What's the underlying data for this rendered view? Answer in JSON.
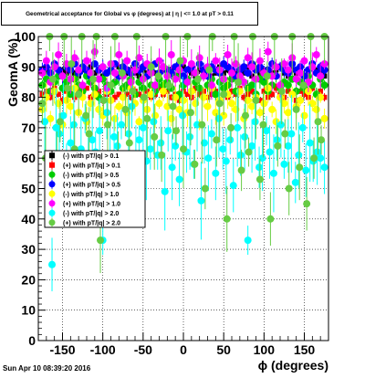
{
  "title": "Geometrical acceptance for Global vs φ (degrees) at | η | <= 1.0 at pT > 0.11",
  "footer": "Sun Apr 10 08:39:20 2016",
  "chart_data": {
    "type": "scatter",
    "xlabel": "ϕ (degrees)",
    "ylabel": "GeomA (%)",
    "xlim": [
      -180,
      180
    ],
    "ylim": [
      0,
      100
    ],
    "x_ticks": [
      -150,
      -100,
      -50,
      0,
      50,
      100,
      150
    ],
    "x_tick_labels": [
      "-150",
      "-100",
      "-50",
      "0",
      "50",
      "100",
      "150"
    ],
    "y_ticks": [
      0,
      10,
      20,
      30,
      40,
      50,
      60,
      70,
      80,
      90,
      100
    ],
    "y_tick_labels": [
      "0",
      "10",
      "20",
      "30",
      "40",
      "50",
      "60",
      "70",
      "80",
      "90",
      "100"
    ],
    "grid": true,
    "legend_position": "middle-left",
    "series": [
      {
        "name": "(-) with pT/|q| > 0.1",
        "color": "#000000",
        "marker": "square",
        "band": [
          87,
          90
        ],
        "err": 1,
        "x": [
          -175,
          -170,
          -165,
          -160,
          -155,
          -150,
          -145,
          -140,
          -135,
          -130,
          -125,
          -120,
          -115,
          -110,
          -105,
          -100,
          -95,
          -90,
          -85,
          -80,
          -75,
          -70,
          -65,
          -60,
          -55,
          -50,
          -45,
          -40,
          -35,
          -30,
          -25,
          -20,
          -15,
          -10,
          -5,
          0,
          5,
          10,
          15,
          20,
          25,
          30,
          35,
          40,
          45,
          50,
          55,
          60,
          65,
          70,
          75,
          80,
          85,
          90,
          95,
          100,
          105,
          110,
          115,
          120,
          125,
          130,
          135,
          140,
          145,
          150,
          155,
          160,
          165,
          170,
          175
        ],
        "y": [
          88,
          89,
          88,
          90,
          87,
          89,
          88,
          89,
          88,
          87,
          89,
          88,
          90,
          88,
          89,
          87,
          88,
          89,
          88,
          90,
          87,
          88,
          89,
          88,
          87,
          89,
          88,
          90,
          88,
          87,
          89,
          88,
          89,
          87,
          88,
          90,
          89,
          88,
          87,
          89,
          88,
          89,
          87,
          88,
          90,
          88,
          89,
          87,
          88,
          89,
          88,
          90,
          87,
          89,
          88,
          89,
          87,
          88,
          89,
          90,
          88,
          87,
          89,
          88,
          89,
          87,
          88,
          90,
          89,
          88,
          87
        ]
      },
      {
        "name": "(+) with pT/|q| > 0.1",
        "color": "#ff0000",
        "marker": "square",
        "band": [
          79,
          83
        ],
        "err": 1,
        "x": [
          -175,
          -170,
          -165,
          -160,
          -155,
          -150,
          -145,
          -140,
          -135,
          -130,
          -125,
          -120,
          -115,
          -110,
          -105,
          -100,
          -95,
          -90,
          -85,
          -80,
          -75,
          -70,
          -65,
          -60,
          -55,
          -50,
          -45,
          -40,
          -35,
          -30,
          -25,
          -20,
          -15,
          -10,
          -5,
          0,
          5,
          10,
          15,
          20,
          25,
          30,
          35,
          40,
          45,
          50,
          55,
          60,
          65,
          70,
          75,
          80,
          85,
          90,
          95,
          100,
          105,
          110,
          115,
          120,
          125,
          130,
          135,
          140,
          145,
          150,
          155,
          160,
          165,
          170,
          175
        ],
        "y": [
          81,
          82,
          80,
          83,
          81,
          79,
          82,
          81,
          80,
          82,
          81,
          83,
          80,
          81,
          82,
          79,
          81,
          82,
          80,
          81,
          83,
          81,
          80,
          82,
          81,
          79,
          82,
          80,
          81,
          83,
          81,
          82,
          80,
          81,
          79,
          82,
          81,
          80,
          83,
          81,
          82,
          80,
          81,
          82,
          79,
          81,
          80,
          82,
          81,
          83,
          80,
          81,
          82,
          81,
          79,
          82,
          80,
          81,
          83,
          81,
          80,
          82,
          81,
          79,
          82,
          81,
          80,
          83,
          81,
          82,
          80
        ]
      },
      {
        "name": "(-) with pT/|q| > 0.5",
        "color": "#00cc00",
        "marker": "circle",
        "band": [
          80,
          88
        ],
        "err": 2,
        "x": [
          -175,
          -170,
          -165,
          -160,
          -155,
          -150,
          -145,
          -140,
          -135,
          -130,
          -125,
          -120,
          -115,
          -110,
          -105,
          -100,
          -95,
          -90,
          -85,
          -80,
          -75,
          -70,
          -65,
          -60,
          -55,
          -50,
          -45,
          -40,
          -35,
          -30,
          -25,
          -20,
          -15,
          -10,
          -5,
          0,
          5,
          10,
          15,
          20,
          25,
          30,
          35,
          40,
          45,
          50,
          55,
          60,
          65,
          70,
          75,
          80,
          85,
          90,
          95,
          100,
          105,
          110,
          115,
          120,
          125,
          130,
          135,
          140,
          145,
          150,
          155,
          160,
          165,
          170,
          175
        ],
        "y": [
          84,
          86,
          82,
          85,
          87,
          83,
          85,
          81,
          86,
          84,
          82,
          87,
          85,
          83,
          80,
          86,
          84,
          82,
          85,
          87,
          83,
          84,
          86,
          81,
          85,
          83,
          87,
          84,
          82,
          86,
          84,
          85,
          83,
          87,
          81,
          84,
          86,
          82,
          85,
          83,
          87,
          84,
          86,
          81,
          85,
          83,
          84,
          86,
          82,
          87,
          85,
          83,
          84,
          81,
          86,
          85,
          82,
          84,
          87,
          83,
          85,
          84,
          86,
          82,
          85,
          83,
          87,
          84,
          81,
          86,
          84
        ]
      },
      {
        "name": "(+) with pT/|q| > 0.5",
        "color": "#0000ff",
        "marker": "circle",
        "band": [
          86,
          91
        ],
        "err": 1.5,
        "x": [
          -175,
          -170,
          -165,
          -160,
          -155,
          -150,
          -145,
          -140,
          -135,
          -130,
          -125,
          -120,
          -115,
          -110,
          -105,
          -100,
          -95,
          -90,
          -85,
          -80,
          -75,
          -70,
          -65,
          -60,
          -55,
          -50,
          -45,
          -40,
          -35,
          -30,
          -25,
          -20,
          -15,
          -10,
          -5,
          0,
          5,
          10,
          15,
          20,
          25,
          30,
          35,
          40,
          45,
          50,
          55,
          60,
          65,
          70,
          75,
          80,
          85,
          90,
          95,
          100,
          105,
          110,
          115,
          120,
          125,
          130,
          135,
          140,
          145,
          150,
          155,
          160,
          165,
          170,
          175
        ],
        "y": [
          89,
          90,
          88,
          91,
          89,
          87,
          90,
          89,
          91,
          88,
          90,
          89,
          87,
          91,
          89,
          90,
          88,
          89,
          91,
          87,
          90,
          89,
          88,
          91,
          89,
          90,
          87,
          89,
          91,
          88,
          90,
          89,
          88,
          90,
          91,
          87,
          89,
          90,
          88,
          91,
          89,
          87,
          90,
          89,
          88,
          91,
          90,
          89,
          87,
          89,
          90,
          88,
          91,
          89,
          90,
          88,
          89,
          91,
          87,
          90,
          89,
          88,
          91,
          89,
          90,
          87,
          89,
          91,
          88,
          90,
          89
        ]
      },
      {
        "name": "(-) with pT/|q| > 1.0",
        "color": "#ffff00",
        "marker": "circle",
        "band": [
          70,
          85
        ],
        "err": 3,
        "x": [
          -175,
          -170,
          -165,
          -160,
          -155,
          -150,
          -145,
          -140,
          -135,
          -130,
          -125,
          -120,
          -115,
          -110,
          -105,
          -100,
          -95,
          -90,
          -85,
          -80,
          -75,
          -70,
          -65,
          -60,
          -55,
          -50,
          -45,
          -40,
          -35,
          -30,
          -25,
          -20,
          -15,
          -10,
          -5,
          0,
          5,
          10,
          15,
          20,
          25,
          30,
          35,
          40,
          45,
          50,
          55,
          60,
          65,
          70,
          75,
          80,
          85,
          90,
          95,
          100,
          105,
          110,
          115,
          120,
          125,
          130,
          135,
          140,
          145,
          150,
          155,
          160,
          165,
          170,
          175
        ],
        "y": [
          76,
          80,
          73,
          82,
          78,
          71,
          79,
          77,
          83,
          75,
          80,
          72,
          78,
          81,
          76,
          74,
          82,
          79,
          73,
          77,
          80,
          75,
          83,
          78,
          72,
          79,
          76,
          81,
          74,
          78,
          82,
          77,
          73,
          80,
          76,
          79,
          75,
          82,
          78,
          71,
          80,
          77,
          83,
          75,
          79,
          74,
          81,
          78,
          76,
          82,
          73,
          79,
          77,
          80,
          75,
          78,
          83,
          76,
          72,
          80,
          78,
          75,
          81,
          77,
          79,
          74,
          82,
          78,
          76,
          80,
          73
        ]
      },
      {
        "name": "(+) with pT/|q| > 1.0",
        "color": "#ff00ff",
        "marker": "circle",
        "band": [
          82,
          95
        ],
        "err": 3,
        "x": [
          -175,
          -170,
          -165,
          -160,
          -155,
          -150,
          -145,
          -140,
          -135,
          -130,
          -125,
          -120,
          -115,
          -110,
          -105,
          -100,
          -95,
          -90,
          -85,
          -80,
          -75,
          -70,
          -65,
          -60,
          -55,
          -50,
          -45,
          -40,
          -35,
          -30,
          -25,
          -20,
          -15,
          -10,
          -5,
          0,
          5,
          10,
          15,
          20,
          25,
          30,
          35,
          40,
          45,
          50,
          55,
          60,
          65,
          70,
          75,
          80,
          85,
          90,
          95,
          100,
          105,
          110,
          115,
          120,
          125,
          130,
          135,
          140,
          145,
          150,
          155,
          160,
          165,
          170,
          175
        ],
        "y": [
          88,
          92,
          85,
          90,
          94,
          87,
          91,
          86,
          93,
          89,
          84,
          92,
          88,
          95,
          86,
          90,
          83,
          91,
          88,
          94,
          87,
          92,
          85,
          89,
          93,
          86,
          91,
          88,
          84,
          92,
          90,
          87,
          94,
          86,
          89,
          92,
          85,
          91,
          88,
          93,
          87,
          90,
          84,
          92,
          89,
          86,
          94,
          88,
          91,
          87,
          85,
          93,
          90,
          86,
          92,
          88,
          95,
          87,
          90,
          84,
          91,
          89,
          93,
          86,
          88,
          92,
          85,
          90,
          94,
          87,
          91
        ]
      },
      {
        "name": "(-) with pT/|q| > 2.0",
        "color": "#00ffff",
        "marker": "circle",
        "err": 8,
        "x": [
          -172,
          -168,
          -163,
          -158,
          -154,
          -149,
          -145,
          -140,
          -136,
          -131,
          -127,
          -122,
          -118,
          -113,
          -109,
          -104,
          -100,
          -95,
          -91,
          -86,
          -82,
          -77,
          -73,
          -68,
          -64,
          -59,
          -55,
          -50,
          -46,
          -41,
          -37,
          -32,
          -28,
          -23,
          -19,
          -14,
          -10,
          -5,
          -1,
          4,
          8,
          13,
          17,
          22,
          26,
          31,
          35,
          40,
          44,
          49,
          53,
          58,
          62,
          67,
          71,
          76,
          80,
          85,
          89,
          94,
          98,
          103,
          107,
          112,
          116,
          121,
          125,
          130,
          134,
          139,
          143,
          148,
          152,
          157,
          161,
          166,
          170,
          175
        ],
        "y": [
          72,
          56,
          25,
          70,
          68,
          74,
          60,
          65,
          71,
          55,
          63,
          73,
          58,
          66,
          62,
          69,
          33,
          75,
          57,
          67,
          64,
          71,
          52,
          68,
          77,
          60,
          66,
          70,
          59,
          63,
          72,
          61,
          65,
          49,
          69,
          57,
          64,
          53,
          74,
          62,
          67,
          58,
          71,
          46,
          65,
          60,
          68,
          55,
          73,
          63,
          59,
          66,
          51,
          70,
          61,
          67,
          33,
          64,
          72,
          57,
          60,
          69,
          62,
          55,
          66,
          71,
          58,
          64,
          68,
          52,
          61,
          70,
          56,
          65,
          59,
          62,
          60,
          57
        ]
      },
      {
        "name": "(+) with pT/|q| > 2.0",
        "color": "#66cc44",
        "marker": "circle",
        "err": 8,
        "x": [
          -175,
          -171,
          -166,
          -162,
          -157,
          -153,
          -148,
          -144,
          -139,
          -135,
          -130,
          -126,
          -121,
          -117,
          -112,
          -108,
          -103,
          -99,
          -94,
          -90,
          -85,
          -81,
          -76,
          -72,
          -67,
          -63,
          -58,
          -54,
          -49,
          -45,
          -40,
          -36,
          -31,
          -27,
          -22,
          -18,
          -13,
          -9,
          -4,
          0,
          5,
          9,
          14,
          18,
          23,
          27,
          32,
          36,
          41,
          45,
          50,
          54,
          59,
          63,
          68,
          72,
          77,
          81,
          86,
          90,
          95,
          99,
          104,
          108,
          113,
          117,
          122,
          126,
          131,
          135,
          140,
          144,
          149,
          153,
          158,
          162,
          167,
          171,
          175
        ],
        "y": [
          78,
          60,
          100,
          86,
          56,
          72,
          100,
          83,
          91,
          63,
          81,
          100,
          74,
          68,
          86,
          100,
          33,
          79,
          71,
          84,
          100,
          58,
          88,
          76,
          65,
          82,
          100,
          53,
          80,
          73,
          90,
          67,
          87,
          61,
          100,
          84,
          77,
          69,
          92,
          63,
          100,
          75,
          58,
          86,
          71,
          50,
          89,
          100,
          66,
          78,
          81,
          40,
          70,
          100,
          85,
          56,
          74,
          62,
          100,
          79,
          53,
          71,
          87,
          40,
          100,
          64,
          82,
          68,
          50,
          100,
          76,
          57,
          84,
          45,
          100,
          60,
          72,
          66,
          100
        ]
      }
    ]
  }
}
